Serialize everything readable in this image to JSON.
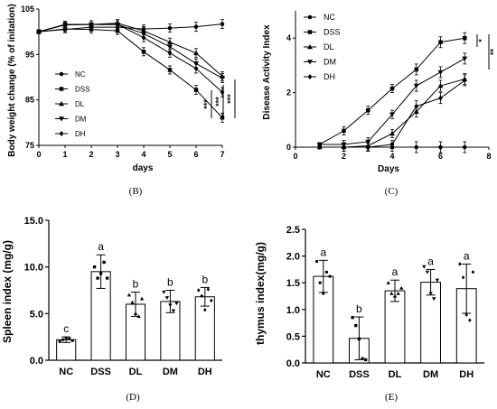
{
  "chart_data": [
    {
      "panel": "(B)",
      "type": "line",
      "xlabel": "days",
      "ylabel": "Body weight change (% of initation)",
      "xlim": [
        0,
        7
      ],
      "ylim": [
        75,
        105
      ],
      "xticks": [
        "0",
        "1",
        "2",
        "3",
        "4",
        "5",
        "6",
        "7"
      ],
      "yticks": [
        "75",
        "85",
        "95",
        "105"
      ],
      "x": [
        0,
        1,
        2,
        3,
        4,
        5,
        6,
        7
      ],
      "series": [
        {
          "name": "NC",
          "marker": "circle",
          "values": [
            100,
            100.5,
            101,
            101,
            100.6,
            100.8,
            101.1,
            101.7
          ]
        },
        {
          "name": "DSS",
          "marker": "square",
          "values": [
            100,
            100.6,
            100.5,
            100.2,
            95.6,
            91.6,
            87.2,
            81.1
          ]
        },
        {
          "name": "DL",
          "marker": "triangle",
          "values": [
            100,
            101.6,
            101.6,
            101.9,
            100.2,
            97.7,
            95.3,
            90.2
          ]
        },
        {
          "name": "DM",
          "marker": "tri-down",
          "values": [
            100,
            101.6,
            101.6,
            101.6,
            99.6,
            96.7,
            93.0,
            89.8
          ]
        },
        {
          "name": "DH",
          "marker": "diamond",
          "values": [
            100,
            101.5,
            101.6,
            101.6,
            98.7,
            95.3,
            91.9,
            86.7
          ]
        }
      ],
      "errors": [
        0.4,
        0.7,
        0.8,
        0.8,
        0.9,
        0.9,
        1.0,
        1.0
      ],
      "significance": [
        "***",
        "***",
        "***"
      ],
      "legend": "inside-left"
    },
    {
      "panel": "(C)",
      "type": "line",
      "xlabel": "Days",
      "ylabel": "Disease Activity Index",
      "xlim": [
        0,
        8
      ],
      "ylim": [
        0,
        5
      ],
      "xticks": [
        "0",
        "2",
        "4",
        "6",
        "8"
      ],
      "yticks": [
        "0",
        "2",
        "4"
      ],
      "x": [
        1,
        2,
        3,
        4,
        5,
        6,
        7
      ],
      "series": [
        {
          "name": "NC",
          "marker": "circle",
          "values": [
            0,
            0,
            0,
            0,
            0,
            0,
            0
          ]
        },
        {
          "name": "DSS",
          "marker": "square",
          "values": [
            0.1,
            0.6,
            1.35,
            2.15,
            2.85,
            3.85,
            4.0
          ]
        },
        {
          "name": "DL",
          "marker": "triangle",
          "values": [
            0,
            0,
            0.05,
            0.5,
            1.3,
            2.25,
            2.5
          ]
        },
        {
          "name": "DM",
          "marker": "tri-down",
          "values": [
            0.1,
            0.1,
            0.2,
            1.2,
            2.25,
            2.75,
            3.25
          ]
        },
        {
          "name": "DH",
          "marker": "diamond",
          "values": [
            0,
            0,
            0,
            0.1,
            1.5,
            1.8,
            2.45
          ]
        }
      ],
      "errors": [
        0.05,
        0.15,
        0.15,
        0.15,
        0.2,
        0.2,
        0.2
      ],
      "significance": [
        "*",
        "**"
      ],
      "legend": "top-left"
    },
    {
      "panel": "(D)",
      "type": "bar",
      "ylabel": "Spleen index (mg/g)",
      "ylim": [
        0,
        15
      ],
      "yticks": [
        "0.0",
        "5.0",
        "10.0",
        "15.0"
      ],
      "categories": [
        "NC",
        "DSS",
        "DL",
        "DM",
        "DH"
      ],
      "values": [
        2.2,
        9.5,
        6.0,
        6.3,
        6.8
      ],
      "errors": [
        0.3,
        1.8,
        1.3,
        1.2,
        1.0
      ],
      "letters": [
        "c",
        "a",
        "b",
        "b",
        "b"
      ],
      "points": [
        [
          2.0,
          2.2,
          2.4,
          2.3,
          2.1
        ],
        [
          10.0,
          8.8,
          9.3,
          10.5,
          8.8
        ],
        [
          7.0,
          6.2,
          5.0,
          4.7,
          6.6
        ],
        [
          7.3,
          6.7,
          5.9,
          5.3,
          6.1
        ],
        [
          7.5,
          6.9,
          5.4,
          7.6,
          6.4
        ]
      ]
    },
    {
      "panel": "(E)",
      "type": "bar",
      "ylabel": "thymus index(mg/g)",
      "ylim": [
        0,
        2.5
      ],
      "yticks": [
        "0.0",
        "0.5",
        "1.0",
        "1.5",
        "2.0",
        "2.5"
      ],
      "categories": [
        "NC",
        "DSS",
        "DL",
        "DM",
        "DH"
      ],
      "values": [
        1.62,
        0.46,
        1.35,
        1.51,
        1.39
      ],
      "errors": [
        0.3,
        0.4,
        0.2,
        0.24,
        0.46
      ],
      "letters": [
        "a",
        "b",
        "a",
        "a",
        "a"
      ],
      "points": [
        [
          1.9,
          1.5,
          1.3,
          1.7,
          1.62
        ],
        [
          0.85,
          0.7,
          0.45,
          0.08,
          0.06
        ],
        [
          1.5,
          1.3,
          1.25,
          1.3,
          1.4
        ],
        [
          1.8,
          1.7,
          1.3,
          1.2,
          1.55
        ],
        [
          1.85,
          1.6,
          0.9,
          0.8,
          1.7
        ]
      ]
    }
  ]
}
